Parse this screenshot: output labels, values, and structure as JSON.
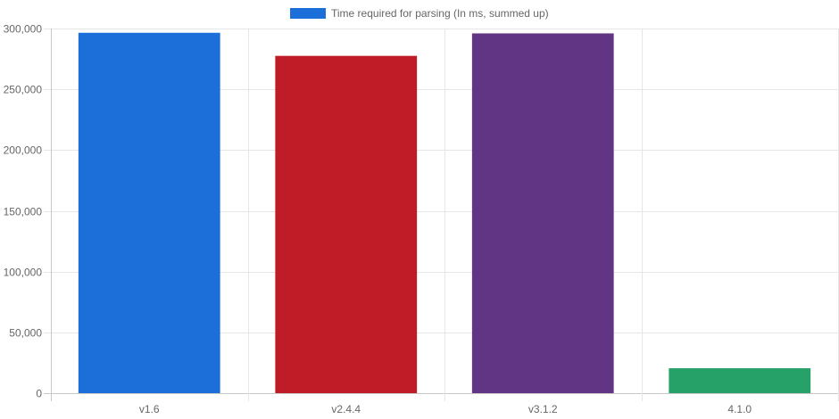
{
  "chart_data": {
    "type": "bar",
    "categories": [
      "v1.6",
      "v2.4.4",
      "v3.1.2",
      "4.1.0"
    ],
    "series": [
      {
        "name": "Time required for parsing (In ms, summed up)",
        "values": [
          296500,
          277500,
          296000,
          20500
        ]
      }
    ],
    "bar_colors": [
      "#1c6fd9",
      "#c01c28",
      "#613583",
      "#26a269"
    ],
    "ylim": [
      0,
      300000
    ],
    "yticks": [
      0,
      50000,
      100000,
      150000,
      200000,
      250000,
      300000
    ],
    "ytick_labels": [
      "0",
      "50,000",
      "100,000",
      "150,000",
      "200,000",
      "250,000",
      "300,000"
    ],
    "legend_position": "top-center",
    "grid": true,
    "gridline_color": "#e6e6e6"
  }
}
